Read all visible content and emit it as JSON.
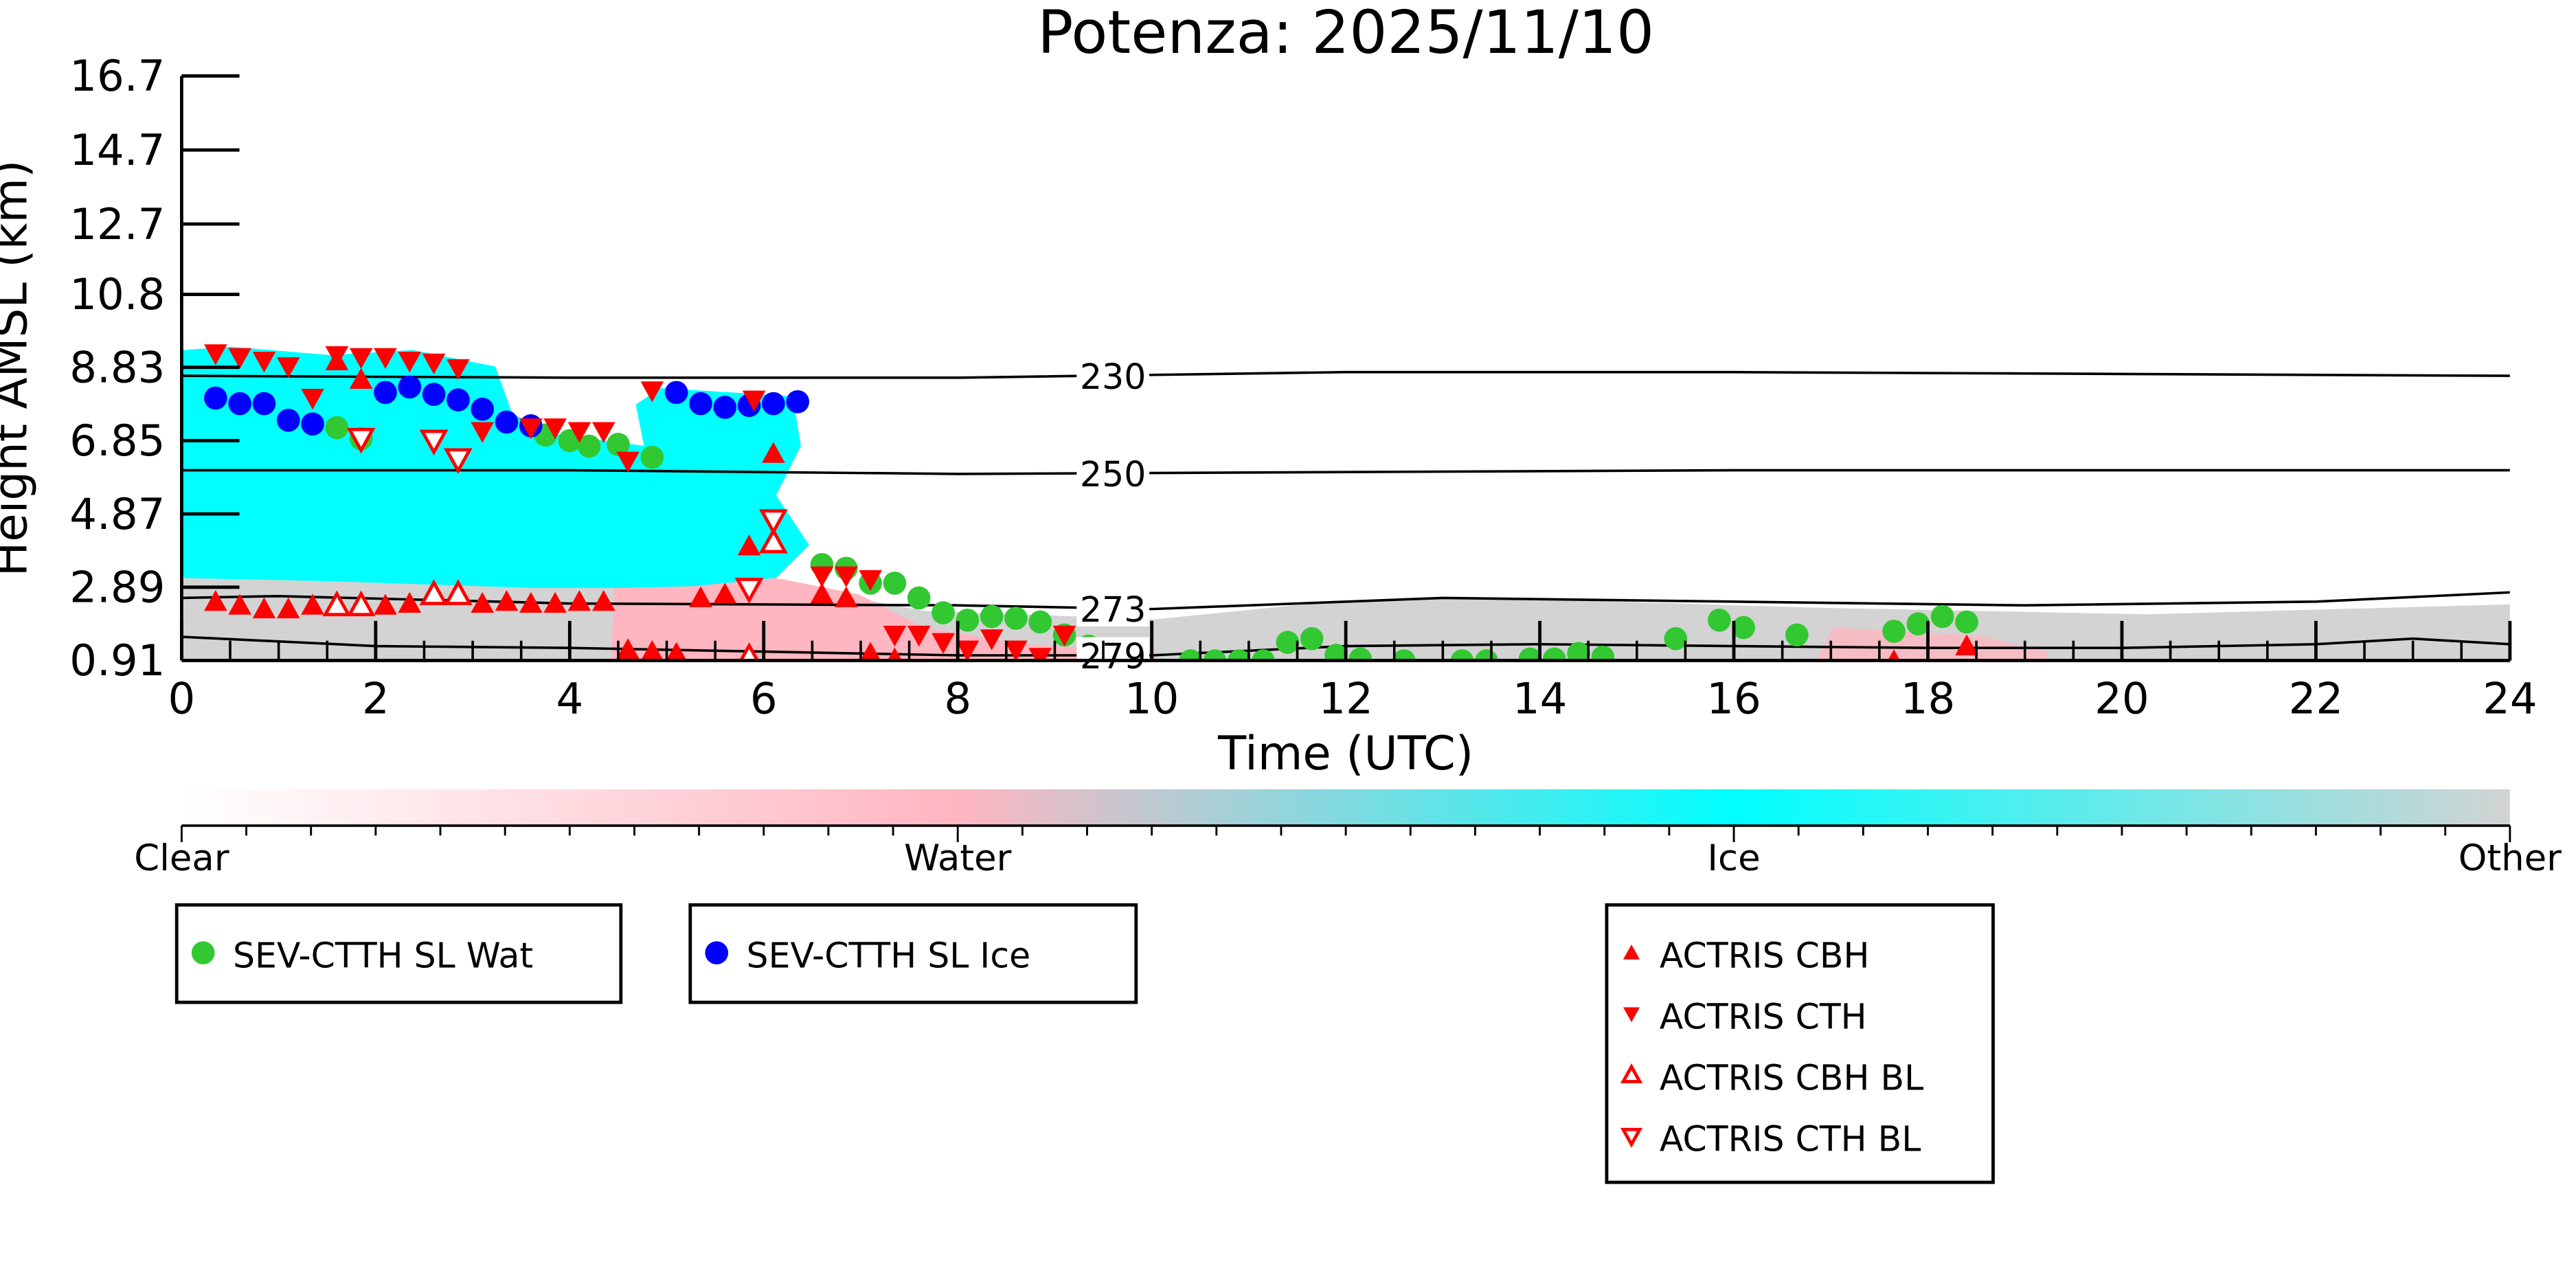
{
  "chart_data": {
    "type": "scatter",
    "title": "Potenza: 2025/11/10",
    "xlabel": "Time (UTC)",
    "ylabel": "Height AMSL (km)",
    "xlim": [
      0,
      24
    ],
    "ylim": [
      0.91,
      16.7
    ],
    "x_ticks": [
      "0",
      "2",
      "4",
      "6",
      "8",
      "10",
      "12",
      "14",
      "16",
      "18",
      "20",
      "22",
      "24"
    ],
    "y_ticks": [
      "0.91",
      "2.89",
      "4.87",
      "6.85",
      "8.83",
      "10.8",
      "12.7",
      "14.7",
      "16.7"
    ],
    "y_tick_values": [
      0.91,
      2.89,
      4.87,
      6.85,
      8.83,
      10.8,
      12.7,
      14.7,
      16.7
    ],
    "colorbar": {
      "labels": [
        "Clear",
        "Water",
        "Ice",
        "Other"
      ],
      "colors": {
        "Clear": "#ffffff",
        "Water": "#ffb6c1",
        "Ice": "#00ffff",
        "Other": "#d3d3d3"
      }
    },
    "contours": [
      {
        "label": "230",
        "label_time": 9.6,
        "x": [
          0,
          4,
          8,
          12,
          16,
          20,
          24
        ],
        "y": [
          8.6,
          8.55,
          8.55,
          8.7,
          8.7,
          8.65,
          8.6
        ]
      },
      {
        "label": "250",
        "label_time": 9.6,
        "x": [
          0,
          4,
          8,
          12,
          16,
          20,
          24
        ],
        "y": [
          6.05,
          6.05,
          5.95,
          6.0,
          6.05,
          6.05,
          6.05
        ]
      },
      {
        "label": "273",
        "label_time": 9.6,
        "x": [
          0,
          1,
          4,
          8,
          10,
          13,
          16,
          19,
          22,
          24
        ],
        "y": [
          2.6,
          2.65,
          2.45,
          2.4,
          2.3,
          2.6,
          2.5,
          2.4,
          2.5,
          2.75
        ]
      },
      {
        "label": "279",
        "label_time": 9.6,
        "x": [
          0,
          2,
          4,
          6,
          8,
          10,
          12,
          14,
          16,
          18,
          20,
          22,
          23,
          24
        ],
        "y": [
          1.55,
          1.3,
          1.25,
          1.15,
          1.05,
          1.05,
          1.3,
          1.35,
          1.3,
          1.25,
          1.25,
          1.35,
          1.5,
          1.35
        ]
      }
    ],
    "series": [
      {
        "name": "SEV-CTTH SL Wat",
        "marker": "circle",
        "color": "#32c832",
        "x": [
          1.6,
          1.85,
          3.75,
          4.0,
          4.2,
          4.5,
          4.85,
          6.6,
          6.85,
          7.1,
          7.35,
          7.6,
          7.85,
          8.1,
          8.35,
          8.6,
          8.85,
          9.1,
          9.35,
          10.4,
          10.65,
          10.9,
          11.15,
          11.4,
          11.65,
          11.9,
          12.15,
          12.6,
          13.2,
          13.45,
          13.9,
          14.15,
          14.4,
          14.65,
          15.4,
          15.85,
          16.1,
          16.65,
          17.65,
          17.9,
          18.15,
          18.4
        ],
        "y": [
          7.2,
          6.9,
          7.0,
          6.85,
          6.7,
          6.75,
          6.4,
          3.5,
          3.4,
          3.0,
          3.0,
          2.6,
          2.2,
          2.0,
          2.1,
          2.05,
          1.95,
          1.6,
          1.3,
          0.9,
          0.9,
          0.9,
          0.9,
          1.4,
          1.5,
          1.05,
          0.95,
          0.9,
          0.9,
          0.9,
          0.95,
          0.95,
          1.1,
          1.0,
          1.5,
          2.0,
          1.8,
          1.6,
          1.7,
          1.9,
          2.1,
          1.95
        ]
      },
      {
        "name": "SEV-CTTH SL Ice",
        "marker": "circle",
        "color": "#0000ff",
        "x": [
          0.35,
          0.6,
          0.85,
          1.1,
          1.35,
          2.1,
          2.35,
          2.6,
          2.85,
          3.1,
          3.35,
          3.6,
          5.1,
          5.35,
          5.6,
          5.85,
          6.1,
          6.35
        ],
        "y": [
          8.0,
          7.85,
          7.85,
          7.4,
          7.3,
          8.15,
          8.3,
          8.1,
          7.95,
          7.7,
          7.35,
          7.25,
          8.15,
          7.85,
          7.75,
          7.8,
          7.85,
          7.9
        ]
      },
      {
        "name": "ACTRIS CBH",
        "marker": "triangle-up",
        "color": "#ff0000",
        "x": [
          0.35,
          0.6,
          0.85,
          1.1,
          1.35,
          2.1,
          2.35,
          3.1,
          3.35,
          3.6,
          3.85,
          4.1,
          4.35,
          4.6,
          4.85,
          5.1,
          5.35,
          5.6,
          5.85,
          6.1,
          6.6,
          6.85,
          7.1,
          7.35,
          1.6,
          1.85,
          17.65,
          18.4
        ],
        "y": [
          2.5,
          2.4,
          2.3,
          2.3,
          2.4,
          2.4,
          2.45,
          2.45,
          2.5,
          2.45,
          2.45,
          2.5,
          2.5,
          1.2,
          1.15,
          1.1,
          2.6,
          2.7,
          4.0,
          6.5,
          2.7,
          2.6,
          1.1,
          0.95,
          9.0,
          8.5,
          0.9,
          1.3
        ]
      },
      {
        "name": "ACTRIS CTH",
        "marker": "triangle-down",
        "color": "#ff0000",
        "x": [
          0.35,
          0.6,
          0.85,
          1.1,
          1.35,
          1.6,
          1.85,
          2.1,
          2.35,
          2.6,
          2.85,
          3.1,
          3.6,
          3.85,
          4.1,
          4.35,
          4.6,
          4.85,
          5.9,
          6.6,
          6.85,
          7.1,
          7.35,
          7.6,
          7.85,
          8.1,
          8.35,
          8.6,
          8.85,
          9.1
        ],
        "y": [
          9.2,
          9.1,
          9.0,
          8.85,
          8.0,
          9.15,
          9.1,
          9.1,
          9.0,
          8.95,
          8.8,
          7.1,
          7.2,
          7.2,
          7.1,
          7.1,
          6.3,
          8.2,
          7.95,
          3.2,
          3.2,
          3.1,
          1.6,
          1.6,
          1.4,
          1.2,
          1.5,
          1.2,
          1.0,
          1.6
        ]
      },
      {
        "name": "ACTRIS CBH BL",
        "marker": "triangle-up-open",
        "color": "#ff0000",
        "x": [
          1.6,
          1.85,
          2.6,
          2.85,
          5.85,
          6.1
        ],
        "y": [
          2.4,
          2.4,
          2.7,
          2.7,
          1.0,
          4.1
        ]
      },
      {
        "name": "ACTRIS CTH BL",
        "marker": "triangle-down-open",
        "color": "#ff0000",
        "x": [
          1.85,
          2.6,
          2.85,
          5.85,
          6.1
        ],
        "y": [
          6.9,
          6.85,
          6.35,
          2.85,
          4.7
        ]
      }
    ],
    "legend_groups": [
      [
        0
      ],
      [
        1
      ],
      [
        2,
        3,
        4,
        5
      ]
    ]
  }
}
